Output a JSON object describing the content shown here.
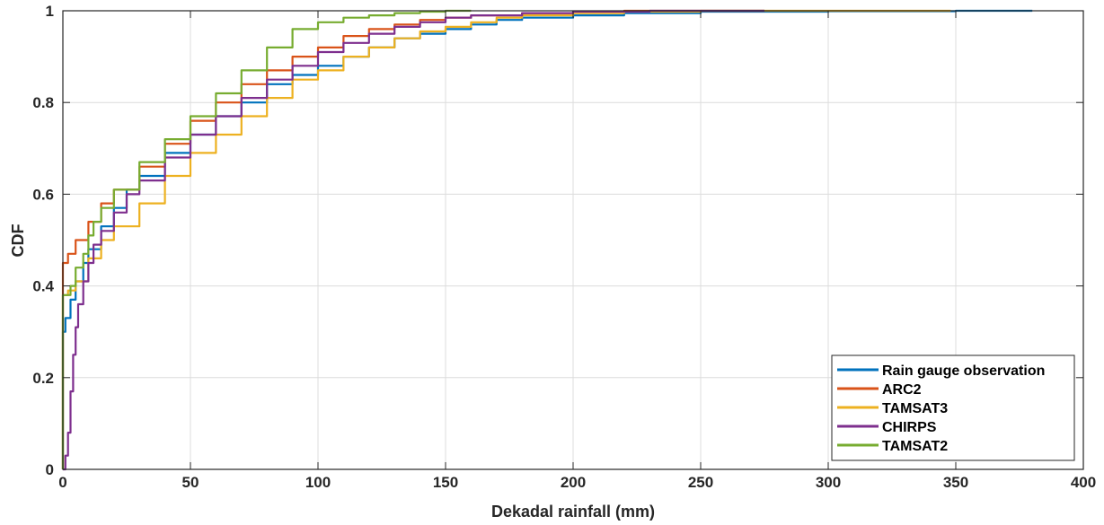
{
  "chart_data": {
    "type": "line",
    "title": "",
    "xlabel": "Dekadal rainfall (mm)",
    "ylabel": "CDF",
    "xlim": [
      0,
      400
    ],
    "ylim": [
      0,
      1
    ],
    "xticks": [
      "0",
      "50",
      "100",
      "150",
      "200",
      "250",
      "300",
      "350",
      "400"
    ],
    "yticks": [
      "0",
      "0.2",
      "0.4",
      "0.6",
      "0.8",
      "1"
    ],
    "grid": true,
    "legend_position": "bottom-right",
    "series": [
      {
        "name": "Rain gauge observation",
        "color": "#0072BD",
        "points": [
          [
            0,
            0
          ],
          [
            0,
            0.3
          ],
          [
            1,
            0.33
          ],
          [
            3,
            0.37
          ],
          [
            5,
            0.41
          ],
          [
            8,
            0.45
          ],
          [
            10,
            0.48
          ],
          [
            15,
            0.53
          ],
          [
            20,
            0.57
          ],
          [
            25,
            0.61
          ],
          [
            30,
            0.64
          ],
          [
            40,
            0.69
          ],
          [
            50,
            0.73
          ],
          [
            60,
            0.77
          ],
          [
            70,
            0.8
          ],
          [
            80,
            0.84
          ],
          [
            90,
            0.86
          ],
          [
            100,
            0.88
          ],
          [
            110,
            0.9
          ],
          [
            120,
            0.92
          ],
          [
            130,
            0.94
          ],
          [
            140,
            0.95
          ],
          [
            150,
            0.96
          ],
          [
            160,
            0.97
          ],
          [
            170,
            0.98
          ],
          [
            180,
            0.985
          ],
          [
            200,
            0.99
          ],
          [
            220,
            0.995
          ],
          [
            250,
            0.998
          ],
          [
            300,
            0.999
          ],
          [
            350,
            1
          ],
          [
            380,
            1
          ]
        ]
      },
      {
        "name": "ARC2",
        "color": "#D95319",
        "points": [
          [
            0,
            0
          ],
          [
            0,
            0.45
          ],
          [
            2,
            0.47
          ],
          [
            5,
            0.5
          ],
          [
            10,
            0.54
          ],
          [
            15,
            0.58
          ],
          [
            20,
            0.61
          ],
          [
            30,
            0.66
          ],
          [
            40,
            0.71
          ],
          [
            50,
            0.76
          ],
          [
            60,
            0.8
          ],
          [
            70,
            0.84
          ],
          [
            80,
            0.87
          ],
          [
            90,
            0.9
          ],
          [
            100,
            0.92
          ],
          [
            110,
            0.945
          ],
          [
            120,
            0.96
          ],
          [
            130,
            0.97
          ],
          [
            140,
            0.98
          ],
          [
            150,
            0.985
          ],
          [
            160,
            0.99
          ],
          [
            180,
            0.995
          ],
          [
            200,
            0.998
          ],
          [
            220,
            1
          ],
          [
            275,
            1
          ]
        ]
      },
      {
        "name": "TAMSAT3",
        "color": "#EDB120",
        "points": [
          [
            0,
            0
          ],
          [
            0,
            0.38
          ],
          [
            2,
            0.39
          ],
          [
            5,
            0.41
          ],
          [
            10,
            0.46
          ],
          [
            15,
            0.5
          ],
          [
            20,
            0.53
          ],
          [
            30,
            0.58
          ],
          [
            40,
            0.64
          ],
          [
            50,
            0.69
          ],
          [
            60,
            0.73
          ],
          [
            70,
            0.77
          ],
          [
            80,
            0.81
          ],
          [
            90,
            0.85
          ],
          [
            100,
            0.87
          ],
          [
            110,
            0.9
          ],
          [
            120,
            0.92
          ],
          [
            130,
            0.94
          ],
          [
            140,
            0.955
          ],
          [
            150,
            0.965
          ],
          [
            160,
            0.975
          ],
          [
            170,
            0.985
          ],
          [
            180,
            0.99
          ],
          [
            200,
            0.995
          ],
          [
            220,
            0.998
          ],
          [
            250,
            1
          ],
          [
            348,
            1
          ]
        ]
      },
      {
        "name": "CHIRPS",
        "color": "#7E2F8E",
        "points": [
          [
            0,
            0
          ],
          [
            1,
            0.03
          ],
          [
            2,
            0.08
          ],
          [
            3,
            0.17
          ],
          [
            4,
            0.25
          ],
          [
            5,
            0.31
          ],
          [
            6,
            0.36
          ],
          [
            8,
            0.41
          ],
          [
            10,
            0.45
          ],
          [
            12,
            0.49
          ],
          [
            15,
            0.52
          ],
          [
            20,
            0.56
          ],
          [
            25,
            0.6
          ],
          [
            30,
            0.63
          ],
          [
            40,
            0.68
          ],
          [
            50,
            0.73
          ],
          [
            60,
            0.77
          ],
          [
            70,
            0.81
          ],
          [
            80,
            0.85
          ],
          [
            90,
            0.88
          ],
          [
            100,
            0.91
          ],
          [
            110,
            0.93
          ],
          [
            120,
            0.95
          ],
          [
            130,
            0.965
          ],
          [
            140,
            0.975
          ],
          [
            150,
            0.985
          ],
          [
            160,
            0.99
          ],
          [
            180,
            0.995
          ],
          [
            200,
            0.998
          ],
          [
            230,
            1
          ],
          [
            275,
            1
          ]
        ]
      },
      {
        "name": "TAMSAT2",
        "color": "#77AC30",
        "points": [
          [
            0,
            0
          ],
          [
            0,
            0.38
          ],
          [
            3,
            0.4
          ],
          [
            5,
            0.44
          ],
          [
            8,
            0.47
          ],
          [
            10,
            0.51
          ],
          [
            12,
            0.54
          ],
          [
            15,
            0.57
          ],
          [
            20,
            0.61
          ],
          [
            30,
            0.67
          ],
          [
            40,
            0.72
          ],
          [
            50,
            0.77
          ],
          [
            60,
            0.82
          ],
          [
            70,
            0.87
          ],
          [
            80,
            0.92
          ],
          [
            90,
            0.96
          ],
          [
            100,
            0.975
          ],
          [
            110,
            0.985
          ],
          [
            120,
            0.99
          ],
          [
            130,
            0.995
          ],
          [
            140,
            0.998
          ],
          [
            150,
            1
          ],
          [
            160,
            1
          ]
        ]
      }
    ]
  }
}
